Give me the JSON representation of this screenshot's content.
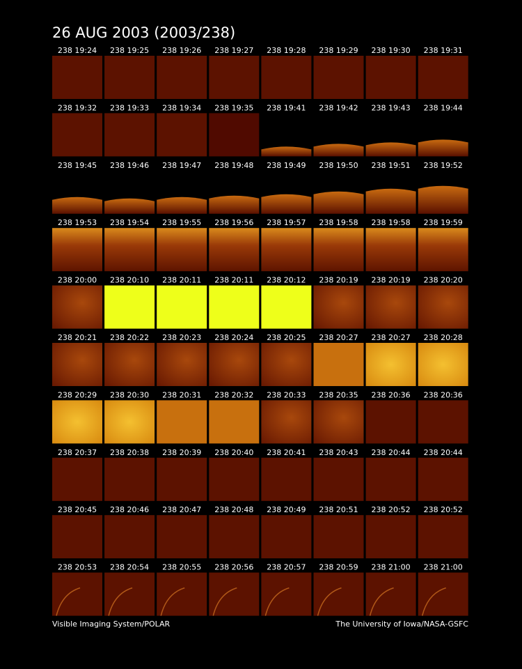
{
  "header": {
    "title": "26 AUG 2003  (2003/238)"
  },
  "frames": [
    [
      "238 19:24",
      "238 19:25",
      "238 19:26",
      "238 19:27",
      "238 19:28",
      "238 19:29",
      "238 19:30",
      "238 19:31"
    ],
    [
      "238 19:32",
      "238 19:33",
      "238 19:34",
      "238 19:35",
      "238 19:41",
      "238 19:42",
      "238 19:43",
      "238 19:44"
    ],
    [
      "238 19:45",
      "238 19:46",
      "238 19:47",
      "238 19:48",
      "238 19:49",
      "238 19:50",
      "238 19:51",
      "238 19:52"
    ],
    [
      "238 19:53",
      "238 19:54",
      "238 19:55",
      "238 19:56",
      "238 19:57",
      "238 19:58",
      "238 19:58",
      "238 19:59"
    ],
    [
      "238 20:00",
      "238 20:10",
      "238 20:11",
      "238 20:11",
      "238 20:12",
      "238 20:19",
      "238 20:19",
      "238 20:20"
    ],
    [
      "238 20:21",
      "238 20:22",
      "238 20:23",
      "238 20:24",
      "238 20:25",
      "238 20:27",
      "238 20:27",
      "238 20:28"
    ],
    [
      "238 20:29",
      "238 20:30",
      "238 20:31",
      "238 20:32",
      "238 20:33",
      "238 20:35",
      "238 20:36",
      "238 20:36"
    ],
    [
      "238 20:37",
      "238 20:38",
      "238 20:39",
      "238 20:40",
      "238 20:41",
      "238 20:43",
      "238 20:44",
      "238 20:44"
    ],
    [
      "238 20:45",
      "238 20:46",
      "238 20:47",
      "238 20:48",
      "238 20:49",
      "238 20:51",
      "238 20:52",
      "238 20:52"
    ],
    [
      "238 20:53",
      "238 20:54",
      "238 20:55",
      "238 20:56",
      "238 20:57",
      "238 20:59",
      "238 21:00",
      "238 21:00"
    ]
  ],
  "footer": {
    "left": "Visible Imaging System/POLAR",
    "right": "The University of Iowa/NASA-GSFC"
  }
}
